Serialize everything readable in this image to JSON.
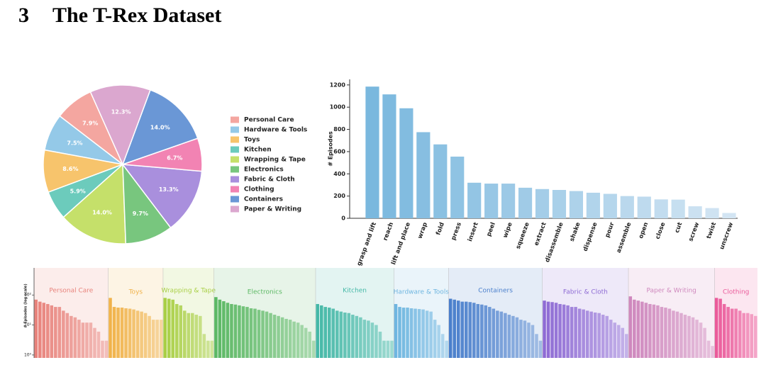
{
  "section_number": "3",
  "section_title": "The T-Rex Dataset",
  "chart_data": [
    {
      "type": "pie",
      "categories": [
        "Personal Care",
        "Hardware & Tools",
        "Toys",
        "Kitchen",
        "Wrapping & Tape",
        "Electronics",
        "Fabric & Cloth",
        "Clothing",
        "Containers",
        "Paper & Writing"
      ],
      "values": [
        7.9,
        7.5,
        8.6,
        5.9,
        14.0,
        9.7,
        13.3,
        6.7,
        14.0,
        12.3
      ],
      "value_labels": [
        "7.9%",
        "7.5%",
        "8.6%",
        "5.9%",
        "14.0%",
        "9.7%",
        "13.3%",
        "6.7%",
        "14.0%",
        "12.3%"
      ],
      "colors": [
        "#f4a6a0",
        "#94c9e8",
        "#f7c46c",
        "#6ccbbc",
        "#c5e06a",
        "#78c67e",
        "#a98fdd",
        "#f283b3",
        "#6a97d6",
        "#dba7cf"
      ],
      "legend": "right"
    },
    {
      "type": "bar",
      "ylabel": "# Episodes",
      "categories": [
        "grasp and lift",
        "reach",
        "lift and place",
        "wrap",
        "fold",
        "press",
        "insert",
        "peel",
        "wipe",
        "squeeze",
        "extract",
        "disassemble",
        "shake",
        "dispense",
        "pour",
        "assemble",
        "open",
        "close",
        "cut",
        "screw",
        "twist",
        "unscrew"
      ],
      "values": [
        1185,
        1115,
        990,
        775,
        665,
        555,
        320,
        312,
        312,
        275,
        263,
        255,
        245,
        230,
        220,
        200,
        195,
        170,
        168,
        108,
        92,
        48
      ],
      "color_gradient": [
        "#7ab8de",
        "#d3e5f3"
      ],
      "ylim": [
        0,
        1250
      ],
      "yticks": [
        0,
        200,
        400,
        600,
        800,
        1000,
        1200
      ]
    },
    {
      "type": "grouped-bar",
      "ylabel": "# Episodes (log scale)",
      "log_scale": true,
      "ylim": [
        0.8,
        800
      ],
      "yticks": [
        {
          "value": 1,
          "label": "10⁰"
        },
        {
          "value": 10,
          "label": "10¹"
        },
        {
          "value": 100,
          "label": "10²"
        }
      ],
      "groups": [
        {
          "name": "Personal Care",
          "color": "#e8837c",
          "values": [
            70,
            60,
            55,
            50,
            45,
            40,
            40,
            30,
            25,
            20,
            18,
            15,
            12,
            12,
            12,
            8,
            6,
            3,
            3
          ]
        },
        {
          "name": "Toys",
          "color": "#f0b24a",
          "values": [
            80,
            40,
            38,
            38,
            36,
            35,
            33,
            30,
            28,
            25,
            20,
            15,
            15,
            15
          ]
        },
        {
          "name": "Wrapping & Tape",
          "color": "#a9cf45",
          "values": [
            80,
            75,
            70,
            50,
            45,
            30,
            25,
            25,
            22,
            20,
            5,
            3,
            3
          ]
        },
        {
          "name": "Electronics",
          "color": "#5cb864",
          "values": [
            85,
            70,
            62,
            55,
            50,
            48,
            45,
            42,
            40,
            36,
            35,
            32,
            30,
            28,
            25,
            22,
            20,
            18,
            16,
            15,
            13,
            12,
            10,
            8,
            6,
            3
          ]
        },
        {
          "name": "Kitchen",
          "color": "#45b8a7",
          "values": [
            50,
            45,
            40,
            38,
            35,
            30,
            28,
            26,
            25,
            22,
            20,
            18,
            15,
            14,
            12,
            10,
            6,
            3,
            3,
            3
          ]
        },
        {
          "name": "Hardware & Tools",
          "color": "#6fb6e0",
          "values": [
            50,
            40,
            38,
            38,
            36,
            35,
            34,
            33,
            30,
            28,
            15,
            10,
            5,
            3
          ]
        },
        {
          "name": "Containers",
          "color": "#4a7fcc",
          "values": [
            75,
            70,
            65,
            60,
            60,
            58,
            55,
            50,
            48,
            45,
            40,
            35,
            30,
            28,
            25,
            22,
            20,
            18,
            15,
            14,
            12,
            10,
            5,
            3
          ]
        },
        {
          "name": "Fabric & Cloth",
          "color": "#8e6bd4",
          "values": [
            65,
            60,
            58,
            55,
            50,
            48,
            45,
            40,
            40,
            35,
            33,
            30,
            28,
            26,
            25,
            22,
            20,
            15,
            12,
            10,
            8,
            5
          ]
        },
        {
          "name": "Paper & Writing",
          "color": "#cf88bd",
          "values": [
            90,
            70,
            65,
            60,
            55,
            50,
            48,
            45,
            40,
            38,
            35,
            30,
            28,
            25,
            22,
            20,
            18,
            15,
            12,
            8,
            3,
            2
          ]
        },
        {
          "name": "Clothing",
          "color": "#ea5a9a",
          "values": [
            80,
            75,
            50,
            40,
            35,
            35,
            30,
            25,
            25,
            23,
            20
          ]
        }
      ]
    }
  ]
}
